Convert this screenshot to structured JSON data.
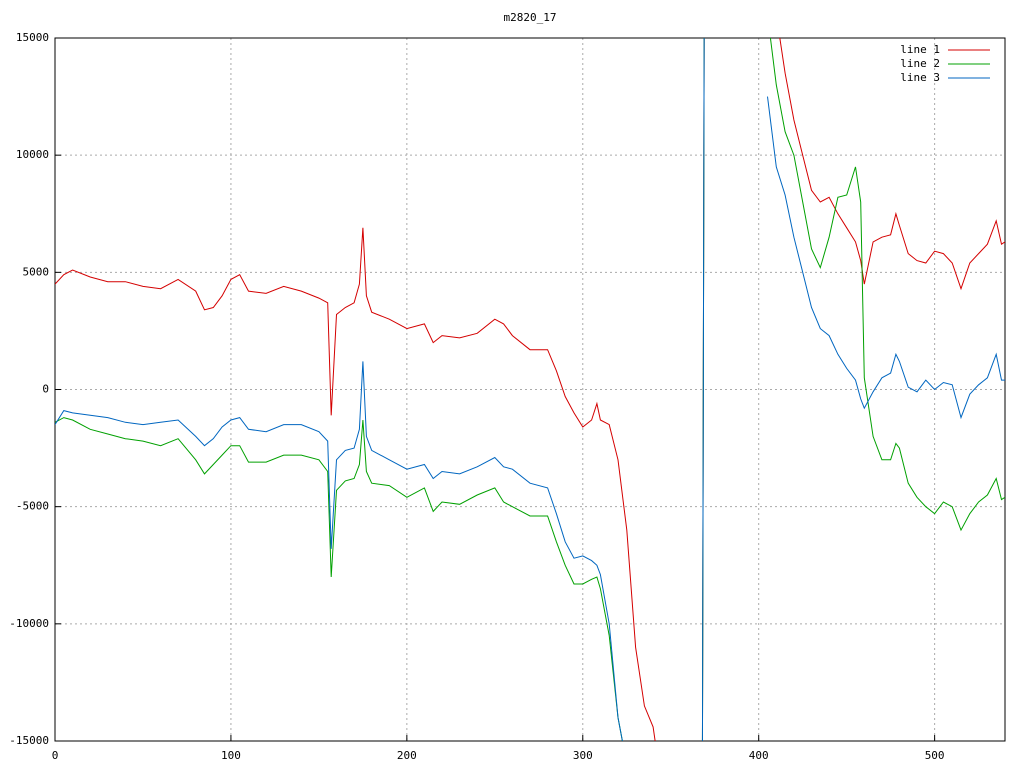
{
  "chart_data": {
    "type": "line",
    "title": "m2820_17",
    "x": [
      0,
      5,
      10,
      20,
      30,
      40,
      50,
      60,
      70,
      80,
      85,
      90,
      95,
      100,
      105,
      110,
      120,
      130,
      140,
      150,
      155,
      157,
      160,
      165,
      170,
      173,
      175,
      177,
      180,
      190,
      200,
      210,
      215,
      220,
      230,
      240,
      250,
      255,
      260,
      270,
      280,
      285,
      290,
      295,
      300,
      305,
      308,
      310,
      315,
      320,
      325,
      330,
      335,
      340,
      345,
      350,
      368,
      369,
      370,
      380,
      405,
      410,
      415,
      420,
      425,
      430,
      435,
      440,
      445,
      450,
      455,
      458,
      460,
      465,
      470,
      475,
      478,
      480,
      485,
      490,
      495,
      500,
      505,
      510,
      515,
      520,
      525,
      530,
      535,
      538,
      540
    ],
    "series": [
      {
        "name": "line 1",
        "color": "#d40000",
        "values": [
          4500,
          4900,
          5100,
          4800,
          4600,
          4600,
          4400,
          4300,
          4700,
          4200,
          3400,
          3500,
          4000,
          4700,
          4900,
          4200,
          4100,
          4400,
          4200,
          3900,
          3700,
          -1100,
          3200,
          3500,
          3700,
          4500,
          6900,
          4000,
          3300,
          3000,
          2600,
          2800,
          2000,
          2300,
          2200,
          2400,
          3000,
          2800,
          2300,
          1700,
          1700,
          800,
          -300,
          -1000,
          -1600,
          -1300,
          -600,
          -1300,
          -1500,
          -3000,
          -6000,
          -11000,
          -13500,
          -14400,
          -17000,
          null,
          -16000,
          16000,
          null,
          null,
          null,
          16000,
          13500,
          11500,
          10000,
          8500,
          8000,
          8200,
          7500,
          6900,
          6300,
          5500,
          4500,
          6300,
          6500,
          6600,
          7500,
          7000,
          5800,
          5500,
          5400,
          5900,
          5800,
          5400,
          4300,
          5400,
          5800,
          6200,
          7200,
          6200,
          6300
        ]
      },
      {
        "name": "line 2",
        "color": "#00a000",
        "values": [
          -1400,
          -1200,
          -1300,
          -1700,
          -1900,
          -2100,
          -2200,
          -2400,
          -2100,
          -3000,
          -3600,
          -3200,
          -2800,
          -2400,
          -2400,
          -3100,
          -3100,
          -2800,
          -2800,
          -3000,
          -3500,
          -8000,
          -4300,
          -3900,
          -3800,
          -3200,
          -1300,
          -3500,
          -4000,
          -4100,
          -4600,
          -4200,
          -5200,
          -4800,
          -4900,
          -4500,
          -4200,
          -4800,
          -5000,
          -5400,
          -5400,
          -6500,
          -7500,
          -8300,
          -8300,
          -8100,
          -8000,
          -8500,
          -10500,
          -14000,
          -16000,
          null,
          null,
          null,
          null,
          null,
          -16000,
          16000,
          null,
          null,
          16000,
          13000,
          11000,
          10000,
          8000,
          6000,
          5200,
          6500,
          8200,
          8300,
          9500,
          8000,
          500,
          -2000,
          -3000,
          -3000,
          -2300,
          -2500,
          -4000,
          -4600,
          -5000,
          -5300,
          -4800,
          -5000,
          -6000,
          -5300,
          -4800,
          -4500,
          -3800,
          -4700,
          -4600
        ]
      },
      {
        "name": "line 3",
        "color": "#0066c0",
        "values": [
          -1500,
          -900,
          -1000,
          -1100,
          -1200,
          -1400,
          -1500,
          -1400,
          -1300,
          -2000,
          -2400,
          -2100,
          -1600,
          -1300,
          -1200,
          -1700,
          -1800,
          -1500,
          -1500,
          -1800,
          -2200,
          -6800,
          -3000,
          -2600,
          -2500,
          -1700,
          1200,
          -2000,
          -2600,
          -3000,
          -3400,
          -3200,
          -3800,
          -3500,
          -3600,
          -3300,
          -2900,
          -3300,
          -3400,
          -4000,
          -4200,
          -5300,
          -6500,
          -7200,
          -7100,
          -7300,
          -7500,
          -7900,
          -10000,
          -14000,
          -16000,
          null,
          null,
          null,
          null,
          null,
          -16000,
          16000,
          null,
          null,
          12500,
          9500,
          8300,
          6500,
          5000,
          3500,
          2600,
          2300,
          1500,
          900,
          400,
          -400,
          -800,
          -100,
          500,
          700,
          1500,
          1200,
          100,
          -100,
          400,
          0,
          300,
          200,
          -1200,
          -200,
          200,
          500,
          1500,
          400,
          400
        ]
      }
    ],
    "xlim": [
      0,
      540
    ],
    "xticks": [
      0,
      100,
      200,
      300,
      400,
      500
    ],
    "ylim": [
      -15000,
      15000
    ],
    "yticks": [
      -15000,
      -10000,
      -5000,
      0,
      5000,
      10000,
      15000
    ],
    "grid": true,
    "legend": "top-right"
  }
}
